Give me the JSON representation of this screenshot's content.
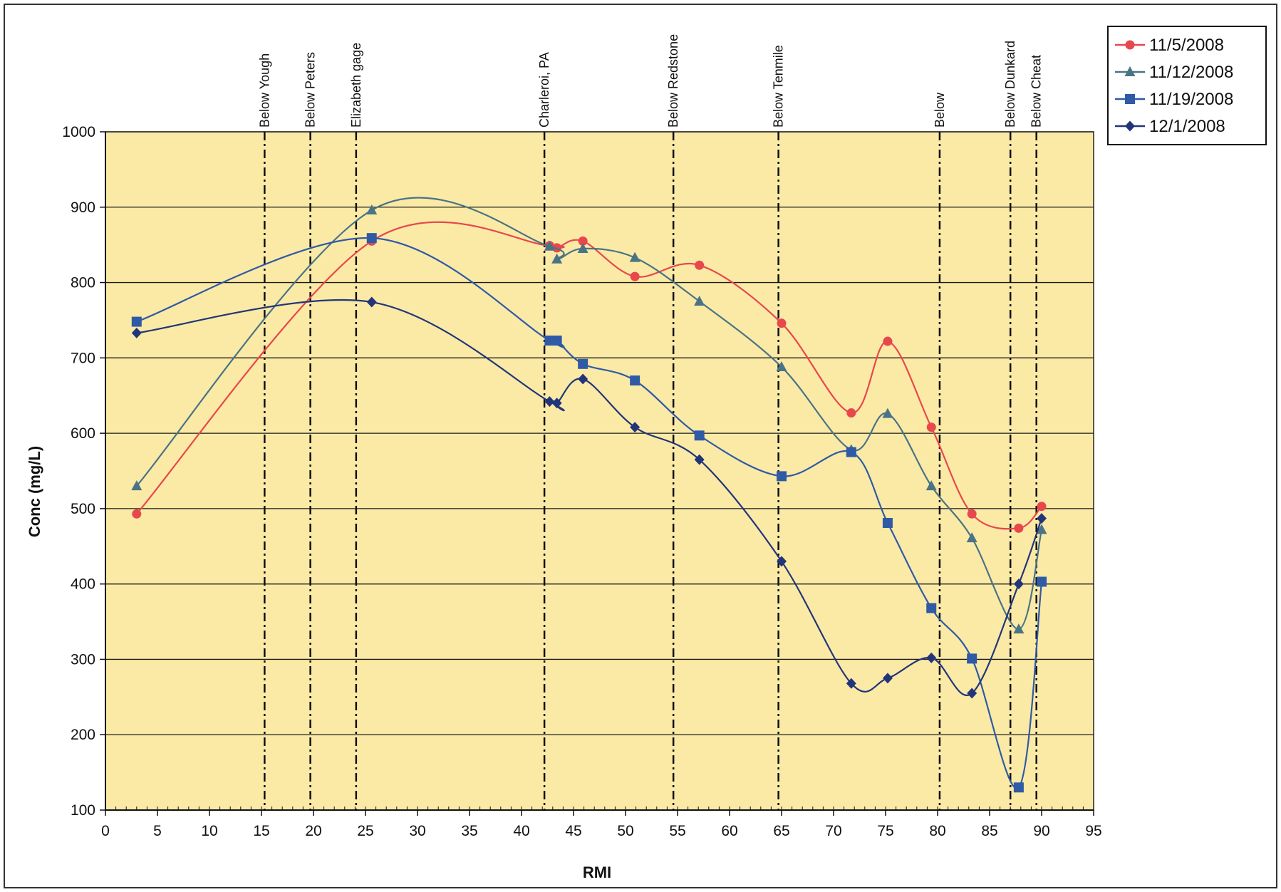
{
  "chart_data": {
    "type": "line",
    "xlabel": "RMI",
    "ylabel": "Conc (mg/L)",
    "xlim": [
      0,
      95
    ],
    "ylim": [
      100,
      1000
    ],
    "x_ticks": [
      "0",
      "5",
      "10",
      "15",
      "20",
      "25",
      "30",
      "35",
      "40",
      "45",
      "50",
      "55",
      "60",
      "65",
      "70",
      "75",
      "80",
      "85",
      "90",
      "95"
    ],
    "y_ticks": [
      "100",
      "200",
      "300",
      "400",
      "500",
      "600",
      "700",
      "800",
      "900",
      "1000"
    ],
    "grid": "horizontal",
    "plot_background": "#fbeaa6",
    "legend": "top-right",
    "site_lines": [
      {
        "label": "Below Yough",
        "x": 15.3
      },
      {
        "label": "Below Peters",
        "x": 19.7
      },
      {
        "label": "Elizabeth gage",
        "x": 24.1
      },
      {
        "label": "Charleroi, PA",
        "x": 42.2
      },
      {
        "label": "Below Redstone",
        "x": 54.6
      },
      {
        "label": "Below Tenmile",
        "x": 64.7
      },
      {
        "label": "Below",
        "x": 80.2
      },
      {
        "label": "Below Dunkard",
        "x": 87.0
      },
      {
        "label": "Below Cheat",
        "x": 89.5
      }
    ],
    "series": [
      {
        "name": "11/5/2008",
        "color": "#e8474c",
        "marker": "circle",
        "points": [
          [
            3,
            493
          ],
          [
            25.6,
            855
          ],
          [
            42.7,
            849
          ],
          [
            43.4,
            846
          ],
          [
            45.9,
            855
          ],
          [
            50.9,
            808
          ],
          [
            57.1,
            823
          ],
          [
            65,
            746
          ],
          [
            71.7,
            627
          ],
          [
            75.2,
            722
          ],
          [
            79.4,
            608
          ],
          [
            83.3,
            493
          ],
          [
            87.8,
            474
          ],
          [
            90,
            503
          ]
        ]
      },
      {
        "name": "11/12/2008",
        "color": "#4a7386",
        "marker": "triangle",
        "points": [
          [
            3,
            530
          ],
          [
            25.6,
            896
          ],
          [
            42.7,
            848
          ],
          [
            43.4,
            831
          ],
          [
            45.9,
            845
          ],
          [
            50.9,
            833
          ],
          [
            57.1,
            775
          ],
          [
            65,
            688
          ],
          [
            71.7,
            578
          ],
          [
            75.2,
            626
          ],
          [
            79.4,
            530
          ],
          [
            83.3,
            461
          ],
          [
            87.8,
            340
          ],
          [
            90,
            472
          ]
        ]
      },
      {
        "name": "11/19/2008",
        "color": "#2f5aa6",
        "marker": "square",
        "points": [
          [
            3,
            748
          ],
          [
            25.6,
            859
          ],
          [
            42.7,
            723
          ],
          [
            43.4,
            723
          ],
          [
            45.9,
            692
          ],
          [
            50.9,
            670
          ],
          [
            57.1,
            597
          ],
          [
            65,
            543
          ],
          [
            71.7,
            575
          ],
          [
            75.2,
            481
          ],
          [
            79.4,
            368
          ],
          [
            83.3,
            301
          ],
          [
            87.8,
            130
          ],
          [
            90,
            403
          ]
        ]
      },
      {
        "name": "12/1/2008",
        "color": "#22357a",
        "marker": "diamond",
        "points": [
          [
            3,
            733
          ],
          [
            25.6,
            774
          ],
          [
            42.7,
            642
          ],
          [
            43.4,
            640
          ],
          [
            45.9,
            672
          ],
          [
            50.9,
            608
          ],
          [
            57.1,
            565
          ],
          [
            65,
            430
          ],
          [
            71.7,
            268
          ],
          [
            75.2,
            275
          ],
          [
            79.4,
            302
          ],
          [
            83.3,
            255
          ],
          [
            87.8,
            400
          ],
          [
            90,
            487
          ]
        ]
      }
    ]
  }
}
